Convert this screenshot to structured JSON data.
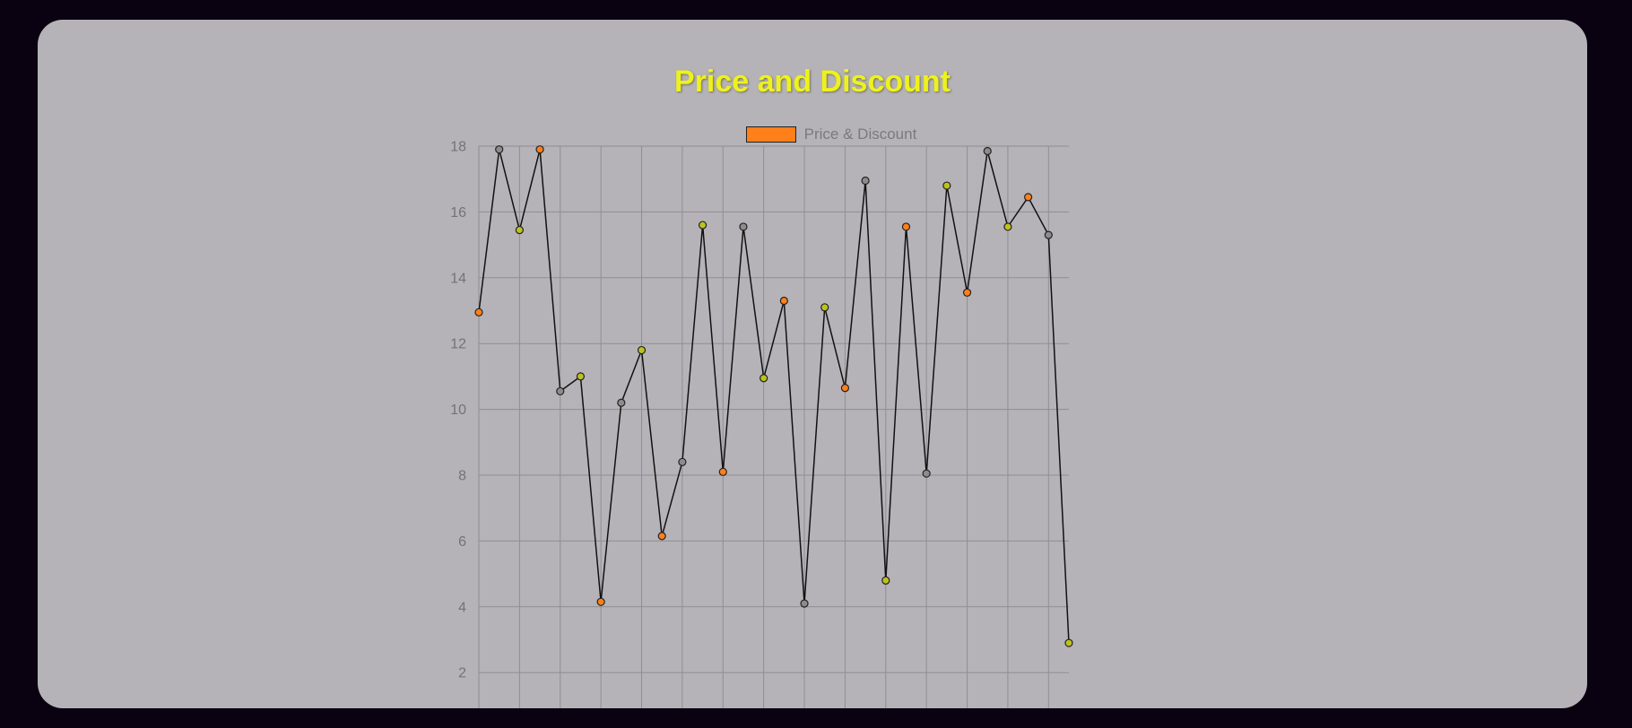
{
  "chart_data": {
    "type": "line",
    "title": "Price and Discount",
    "legend": {
      "label": "Price & Discount",
      "color": "#ff7f1a",
      "placement": "top"
    },
    "xlabel": "",
    "ylabel": "",
    "ylim": [
      1.2,
      18.2
    ],
    "yticks": [
      2,
      4,
      6,
      8,
      10,
      12,
      14,
      16,
      18
    ],
    "grid": true,
    "line_color": "#111111",
    "point_colors_cycle": [
      "#ff7f1a",
      "#8c8c8c",
      "#bcc21e"
    ],
    "series": [
      {
        "values": [
          12.95,
          17.9,
          15.45,
          17.9,
          10.55,
          11.0,
          4.15,
          10.2,
          11.8,
          6.15,
          8.4,
          15.6,
          8.1,
          15.55,
          10.95,
          13.3,
          4.1,
          13.1,
          10.65,
          16.95,
          4.8,
          15.55,
          8.05,
          16.8,
          13.55,
          17.85,
          15.55,
          16.45,
          15.3,
          2.9
        ],
        "point_colors": [
          "#ff7f1a",
          "#8c8c8c",
          "#bcc21e",
          "#ff7f1a",
          "#8c8c8c",
          "#bcc21e",
          "#ff7f1a",
          "#8c8c8c",
          "#bcc21e",
          "#ff7f1a",
          "#8c8c8c",
          "#bcc21e",
          "#ff7f1a",
          "#8c8c8c",
          "#bcc21e",
          "#ff7f1a",
          "#8c8c8c",
          "#bcc21e",
          "#ff7f1a",
          "#8c8c8c",
          "#bcc21e",
          "#ff7f1a",
          "#8c8c8c",
          "#bcc21e",
          "#ff7f1a",
          "#8c8c8c",
          "#bcc21e",
          "#ff7f1a",
          "#8c8c8c",
          "#bcc21e"
        ]
      }
    ]
  }
}
